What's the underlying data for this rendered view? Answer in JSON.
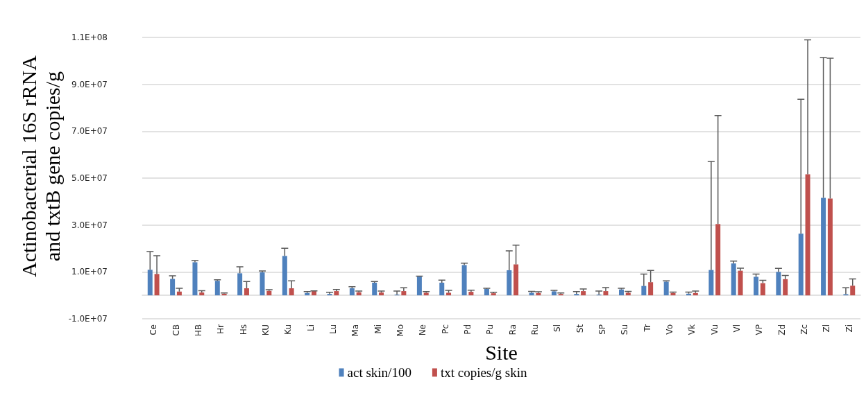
{
  "chart_data": {
    "type": "bar",
    "xlabel": "Site",
    "ylabel": "Actinobacterial 16S rRNA and txtB gene copies/g",
    "categories": [
      "Ce",
      "CB",
      "HB",
      "Hr",
      "Hs",
      "KU",
      "Ku",
      "Li",
      "Lu",
      "Ma",
      "Mi",
      "Mo",
      "Ne",
      "Pc",
      "Pd",
      "Pu",
      "Ra",
      "Ru",
      "Sl",
      "St",
      "SP",
      "Su",
      "Tr",
      "Vo",
      "Vk",
      "Vu",
      "Vl",
      "VP",
      "Zd",
      "Zc",
      "Zl",
      "Zi"
    ],
    "series": [
      {
        "name": "act skin/100",
        "color": "#4f81bd",
        "values": [
          10900000.0,
          7000000.0,
          14100000.0,
          6200000.0,
          9400000.0,
          9800000.0,
          16800000.0,
          1000000.0,
          600000.0,
          3000000.0,
          5400000.0,
          300000.0,
          8000000.0,
          5400000.0,
          12900000.0,
          2700000.0,
          10700000.0,
          1100000.0,
          1700000.0,
          600000.0,
          300000.0,
          2500000.0,
          4000000.0,
          5800000.0,
          700000.0,
          10800000.0,
          13600000.0,
          7900000.0,
          10000000.0,
          26300000.0,
          41600000.0,
          500000.0
        ],
        "errors": [
          [
            10900000.0,
            18700000.0
          ],
          [
            7000000.0,
            8300000.0
          ],
          [
            14100000.0,
            14800000.0
          ],
          [
            6200000.0,
            6600000.0
          ],
          [
            9400000.0,
            12200000.0
          ],
          [
            9800000.0,
            10400000.0
          ],
          [
            16800000.0,
            20100000.0
          ],
          [
            1000000.0,
            1600000.0
          ],
          [
            600000.0,
            1300000.0
          ],
          [
            3000000.0,
            3700000.0
          ],
          [
            5400000.0,
            5900000.0
          ],
          [
            300000.0,
            1800000.0
          ],
          [
            8000000.0,
            8200000.0
          ],
          [
            5400000.0,
            6500000.0
          ],
          [
            12900000.0,
            13700000.0
          ],
          [
            2700000.0,
            3000000.0
          ],
          [
            10700000.0,
            19000000.0
          ],
          [
            1100000.0,
            1700000.0
          ],
          [
            1700000.0,
            2100000.0
          ],
          [
            600000.0,
            1600000.0
          ],
          [
            300000.0,
            1800000.0
          ],
          [
            2500000.0,
            3000000.0
          ],
          [
            4000000.0,
            9100000.0
          ],
          [
            5800000.0,
            6200000.0
          ],
          [
            700000.0,
            1400000.0
          ],
          [
            10800000.0,
            57100000.0
          ],
          [
            13600000.0,
            14600000.0
          ],
          [
            7900000.0,
            9100000.0
          ],
          [
            10000000.0,
            11500000.0
          ],
          [
            26300000.0,
            83600000.0
          ],
          [
            41600000.0,
            101400000.0
          ],
          [
            500000.0,
            3200000.0
          ]
        ]
      },
      {
        "name": "txt copies/g skin",
        "color": "#c0504d",
        "values": [
          9100000.0,
          1600000.0,
          1200000.0,
          700000.0,
          3000000.0,
          1900000.0,
          3000000.0,
          1800000.0,
          1800000.0,
          1300000.0,
          1200000.0,
          1800000.0,
          1100000.0,
          1100000.0,
          1500000.0,
          900000.0,
          13200000.0,
          1000000.0,
          600000.0,
          1800000.0,
          1800000.0,
          1100000.0,
          5600000.0,
          1000000.0,
          1000000.0,
          30400000.0,
          10500000.0,
          5200000.0,
          6900000.0,
          51600000.0,
          41300000.0,
          4100000.0
        ],
        "errors": [
          [
            9100000.0,
            16900000.0
          ],
          [
            1600000.0,
            3000000.0
          ],
          [
            1200000.0,
            2000000.0
          ],
          [
            700000.0,
            1000000.0
          ],
          [
            3000000.0,
            5900000.0
          ],
          [
            1900000.0,
            2400000.0
          ],
          [
            3000000.0,
            6200000.0
          ],
          [
            1800000.0,
            1900000.0
          ],
          [
            1800000.0,
            2500000.0
          ],
          [
            1300000.0,
            1800000.0
          ],
          [
            1200000.0,
            1800000.0
          ],
          [
            1800000.0,
            3200000.0
          ],
          [
            1100000.0,
            1600000.0
          ],
          [
            1100000.0,
            2100000.0
          ],
          [
            1500000.0,
            2200000.0
          ],
          [
            900000.0,
            1300000.0
          ],
          [
            13200000.0,
            21400000.0
          ],
          [
            1000000.0,
            1500000.0
          ],
          [
            600000.0,
            1000000.0
          ],
          [
            1800000.0,
            2700000.0
          ],
          [
            1800000.0,
            3300000.0
          ],
          [
            1100000.0,
            1700000.0
          ],
          [
            5600000.0,
            10600000.0
          ],
          [
            1000000.0,
            1400000.0
          ],
          [
            1000000.0,
            1800000.0
          ],
          [
            30400000.0,
            76700000.0
          ],
          [
            10500000.0,
            11600000.0
          ],
          [
            5200000.0,
            6400000.0
          ],
          [
            6900000.0,
            8500000.0
          ],
          [
            51600000.0,
            109000000.0
          ],
          [
            41300000.0,
            101100000.0
          ],
          [
            4100000.0,
            7000000.0
          ]
        ]
      }
    ],
    "ylim": [
      -10000000.0,
      110000000.0
    ],
    "yticks": [
      {
        "value": -10000000.0,
        "label": "-1.0E+07"
      },
      {
        "value": 10000000.0,
        "label": "1.0E+07"
      },
      {
        "value": 30000000.0,
        "label": "3.0E+07"
      },
      {
        "value": 50000000.0,
        "label": "5.0E+07"
      },
      {
        "value": 70000000.0,
        "label": "7.0E+07"
      },
      {
        "value": 90000000.0,
        "label": "9.0E+07"
      },
      {
        "value": 110000000.0,
        "label": "1.1E+08"
      }
    ],
    "grid": "y",
    "legend": "bottom"
  }
}
